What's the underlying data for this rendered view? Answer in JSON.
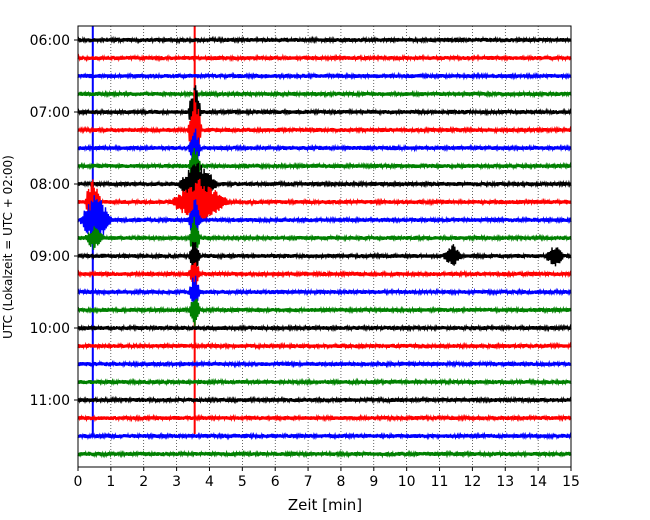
{
  "chart_data": {
    "type": "line",
    "title": "",
    "xlabel": "Zeit  [min]",
    "ylabel": "UTC (Lokalzeit = UTC + 02:00)",
    "xlim": [
      0,
      15
    ],
    "x_ticks": [
      0,
      1,
      2,
      3,
      4,
      5,
      6,
      7,
      8,
      9,
      10,
      11,
      12,
      13,
      14,
      15
    ],
    "x_grid": "dotted",
    "y_tick_labels": [
      "06:00",
      "07:00",
      "08:00",
      "09:00",
      "10:00",
      "11:00"
    ],
    "trace_interval_minutes": 15,
    "traces": [
      {
        "start": "06:00",
        "color": "#000000"
      },
      {
        "start": "06:15",
        "color": "#ff0000"
      },
      {
        "start": "06:30",
        "color": "#0000ff"
      },
      {
        "start": "06:45",
        "color": "#008000"
      },
      {
        "start": "07:00",
        "color": "#000000"
      },
      {
        "start": "07:15",
        "color": "#ff0000"
      },
      {
        "start": "07:30",
        "color": "#0000ff"
      },
      {
        "start": "07:45",
        "color": "#008000"
      },
      {
        "start": "08:00",
        "color": "#000000"
      },
      {
        "start": "08:15",
        "color": "#ff0000"
      },
      {
        "start": "08:30",
        "color": "#0000ff"
      },
      {
        "start": "08:45",
        "color": "#008000"
      },
      {
        "start": "09:00",
        "color": "#000000"
      },
      {
        "start": "09:15",
        "color": "#ff0000"
      },
      {
        "start": "09:30",
        "color": "#0000ff"
      },
      {
        "start": "09:45",
        "color": "#008000"
      },
      {
        "start": "10:00",
        "color": "#000000"
      },
      {
        "start": "10:15",
        "color": "#ff0000"
      },
      {
        "start": "10:30",
        "color": "#0000ff"
      },
      {
        "start": "10:45",
        "color": "#008000"
      },
      {
        "start": "11:00",
        "color": "#000000"
      },
      {
        "start": "11:15",
        "color": "#ff0000"
      },
      {
        "start": "11:30",
        "color": "#0000ff"
      },
      {
        "start": "11:45",
        "color": "#008000"
      }
    ],
    "markers": [
      {
        "x": 0.45,
        "color": "#0000ff"
      },
      {
        "x": 3.55,
        "color": "#ff0000"
      }
    ],
    "events": [
      {
        "trace": "07:00",
        "x": 3.55,
        "amplitude": 1.9,
        "duration": 0.2
      },
      {
        "trace": "07:15",
        "x": 3.55,
        "amplitude": 2.4,
        "duration": 0.22
      },
      {
        "trace": "07:30",
        "x": 3.55,
        "amplitude": 1.2,
        "duration": 0.2
      },
      {
        "trace": "07:45",
        "x": 3.55,
        "amplitude": 1.2,
        "duration": 0.2
      },
      {
        "trace": "08:00",
        "x": 3.65,
        "amplitude": 1.3,
        "duration": 0.6
      },
      {
        "trace": "08:15",
        "x": 3.7,
        "amplitude": 1.3,
        "duration": 0.9
      },
      {
        "trace": "08:30",
        "x": 3.55,
        "amplitude": 1.3,
        "duration": 0.2
      },
      {
        "trace": "08:45",
        "x": 3.55,
        "amplitude": 1.2,
        "duration": 0.18
      },
      {
        "trace": "09:00",
        "x": 3.55,
        "amplitude": 1.0,
        "duration": 0.18
      },
      {
        "trace": "09:15",
        "x": 3.55,
        "amplitude": 1.0,
        "duration": 0.18
      },
      {
        "trace": "09:30",
        "x": 3.55,
        "amplitude": 1.0,
        "duration": 0.18
      },
      {
        "trace": "09:45",
        "x": 3.55,
        "amplitude": 1.0,
        "duration": 0.18
      },
      {
        "trace": "08:15",
        "x": 0.45,
        "amplitude": 1.5,
        "duration": 0.25
      },
      {
        "trace": "08:30",
        "x": 0.55,
        "amplitude": 1.5,
        "duration": 0.5
      },
      {
        "trace": "08:45",
        "x": 0.5,
        "amplitude": 0.6,
        "duration": 0.3
      },
      {
        "trace": "09:00",
        "x": 11.4,
        "amplitude": 0.6,
        "duration": 0.3
      },
      {
        "trace": "09:00",
        "x": 14.5,
        "amplitude": 0.6,
        "duration": 0.3
      }
    ]
  }
}
